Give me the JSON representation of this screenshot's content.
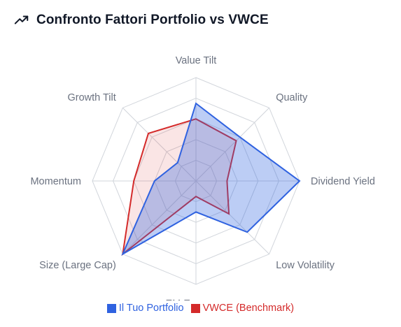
{
  "header": {
    "icon": "trending-up-icon",
    "title": "Confronto Fattori Portfolio vs VWCE"
  },
  "colors": {
    "portfolio": "#2f62e0",
    "benchmark": "#d42a2a",
    "grid": "#d1d5db",
    "label": "#6b7280"
  },
  "chart_data": {
    "type": "radar",
    "title": "Confronto Fattori Portfolio vs VWCE",
    "axes": [
      "Value Tilt",
      "Quality",
      "Dividend Yield",
      "Low Volatility",
      "EM Exposure",
      "Size (Large Cap)",
      "Momentum",
      "Growth Tilt"
    ],
    "range": [
      0,
      100
    ],
    "grid_levels": 5,
    "legend_position": "bottom",
    "series": [
      {
        "name": "Il Tuo Portfolio",
        "color": "#2f62e0",
        "values": [
          75,
          60,
          100,
          70,
          30,
          100,
          40,
          25
        ]
      },
      {
        "name": "VWCE (Benchmark)",
        "color": "#d42a2a",
        "values": [
          60,
          55,
          30,
          45,
          15,
          100,
          60,
          65
        ]
      }
    ]
  }
}
